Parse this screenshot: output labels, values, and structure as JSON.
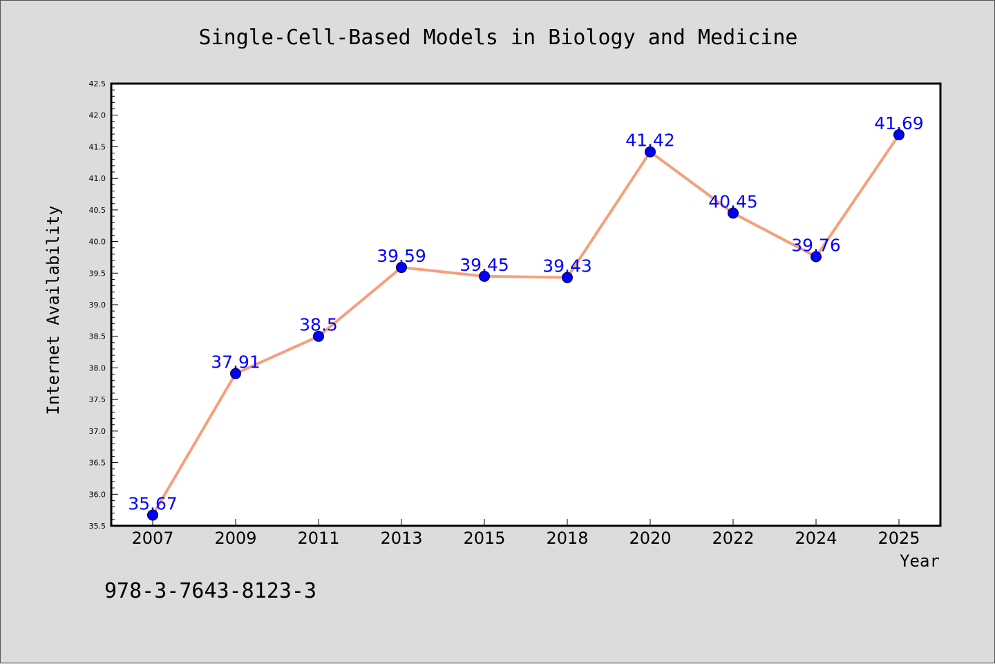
{
  "chart_data": {
    "type": "line",
    "title": "Single-Cell-Based Models in Biology and Medicine",
    "xlabel": "Year",
    "ylabel": "Internet Availability",
    "categories": [
      "2007",
      "2009",
      "2011",
      "2013",
      "2015",
      "2018",
      "2020",
      "2022",
      "2024",
      "2025"
    ],
    "series": [
      {
        "values": [
          35.67,
          37.91,
          38.5,
          39.59,
          39.45,
          39.43,
          41.42,
          40.45,
          39.76,
          41.69
        ],
        "labels": [
          "35.67",
          "37.91",
          "38.5",
          "39.59",
          "39.45",
          "39.43",
          "41.42",
          "40.45",
          "39.76",
          "41.69"
        ]
      }
    ],
    "ylim": [
      35.5,
      42.5
    ],
    "yticks": [
      "35.5",
      "36.0",
      "36.5",
      "37.0",
      "37.5",
      "38.0",
      "38.5",
      "39.0",
      "39.5",
      "40.0",
      "40.5",
      "41.0",
      "41.5",
      "42.0",
      "42.5"
    ],
    "grid": false,
    "colors": {
      "line": "#f5a07a",
      "marker": "#0000ff",
      "labels": "#0000ff",
      "plot_bg": "#ffffff",
      "figure_bg": "#dcdcdc"
    }
  },
  "footer_text": "978-3-7643-8123-3"
}
